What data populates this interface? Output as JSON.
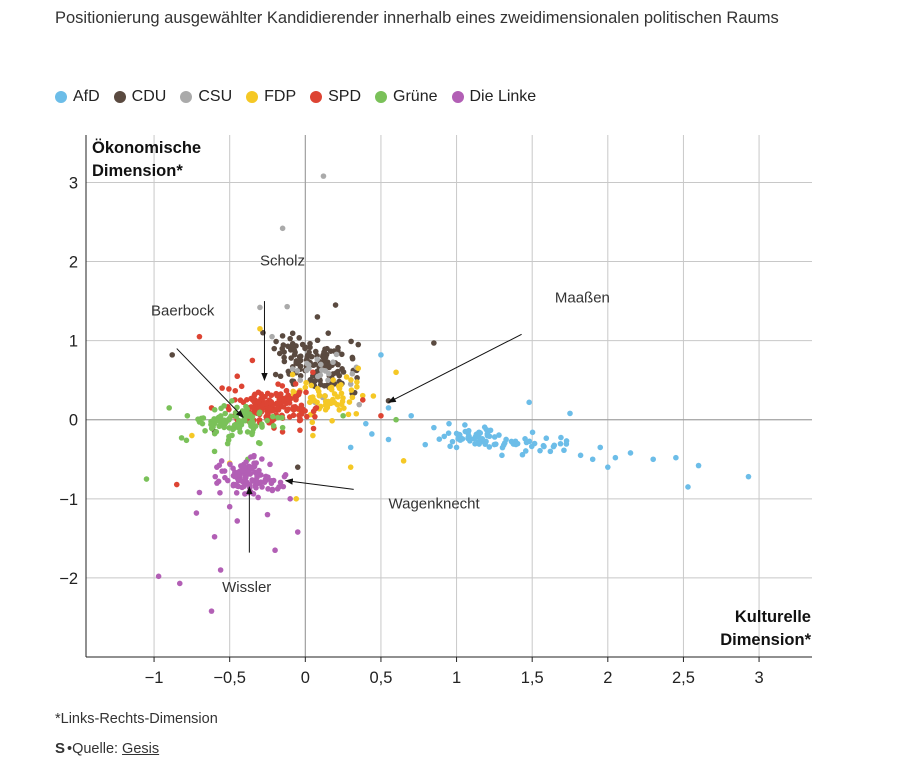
{
  "title": "Positionierung ausgewählter Kandidierender innerhalb eines zweidimensionalen politischen Raums",
  "footnote": "*Links-Rechts-Dimension",
  "source_label": "Quelle:",
  "source_link": "Gesis",
  "logo": "S",
  "chart_data": {
    "type": "scatter",
    "title": "Positionierung ausgewählter Kandidierender innerhalb eines zweidimensionalen politischen Raums",
    "xlabel_lines": [
      "Kulturelle",
      "Dimension*"
    ],
    "ylabel_lines": [
      "Ökonomische",
      "Dimension*"
    ],
    "xlim": [
      -1.45,
      3.35
    ],
    "ylim": [
      -3.0,
      3.6
    ],
    "xticks": [
      -1,
      -0.5,
      0,
      0.5,
      1,
      1.5,
      2,
      2.5,
      3
    ],
    "xtick_labels": [
      "−1",
      "−0,5",
      "0",
      "0,5",
      "1",
      "1,5",
      "2",
      "2,5",
      "3"
    ],
    "yticks": [
      -2,
      -1,
      0,
      1,
      2,
      3
    ],
    "ytick_labels": [
      "−2",
      "−1",
      "0",
      "1",
      "2",
      "3"
    ],
    "grid": true,
    "legend_position": "top-left",
    "series": [
      {
        "name": "AfD",
        "color": "#6cbde8",
        "clusters": [
          {
            "cx": 1.1,
            "cy": -0.22,
            "sx": 0.1,
            "sy": 0.06,
            "n": 55
          },
          {
            "cx": 1.5,
            "cy": -0.32,
            "sx": 0.12,
            "sy": 0.06,
            "n": 30
          }
        ],
        "points": [
          [
            2.93,
            -0.72
          ],
          [
            2.53,
            -0.85
          ],
          [
            2.6,
            -0.58
          ],
          [
            2.45,
            -0.48
          ],
          [
            2.3,
            -0.5
          ],
          [
            2.15,
            -0.42
          ],
          [
            2.05,
            -0.48
          ],
          [
            1.95,
            -0.35
          ],
          [
            1.9,
            -0.5
          ],
          [
            1.82,
            -0.45
          ],
          [
            1.75,
            0.08
          ],
          [
            1.48,
            0.22
          ],
          [
            0.5,
            0.82
          ],
          [
            0.55,
            0.15
          ],
          [
            0.7,
            0.05
          ],
          [
            0.4,
            -0.05
          ],
          [
            0.3,
            -0.35
          ],
          [
            0.55,
            -0.25
          ],
          [
            0.85,
            -0.1
          ],
          [
            0.95,
            -0.05
          ],
          [
            2.0,
            -0.6
          ],
          [
            1.62,
            -0.4
          ],
          [
            0.44,
            -0.18
          ],
          [
            1.3,
            -0.45
          ],
          [
            1.0,
            -0.35
          ]
        ]
      },
      {
        "name": "CDU",
        "color": "#5a4a40",
        "clusters": [
          {
            "cx": 0.0,
            "cy": 0.78,
            "sx": 0.14,
            "sy": 0.14,
            "n": 90
          },
          {
            "cx": 0.15,
            "cy": 0.55,
            "sx": 0.12,
            "sy": 0.12,
            "n": 40
          }
        ],
        "points": [
          [
            0.85,
            0.97
          ],
          [
            -0.88,
            0.82
          ],
          [
            0.55,
            0.24
          ],
          [
            -0.28,
            1.1
          ],
          [
            0.2,
            1.45
          ],
          [
            -0.6,
            -0.15
          ],
          [
            -0.05,
            -0.6
          ],
          [
            0.13,
            0.3
          ],
          [
            0.35,
            0.95
          ],
          [
            0.08,
            1.3
          ]
        ]
      },
      {
        "name": "CSU",
        "color": "#aaaaaa",
        "clusters": [
          {
            "cx": 0.1,
            "cy": 0.55,
            "sx": 0.15,
            "sy": 0.15,
            "n": 22
          }
        ],
        "points": [
          [
            0.12,
            3.08
          ],
          [
            -0.15,
            2.42
          ],
          [
            -0.3,
            1.42
          ],
          [
            -0.12,
            1.43
          ],
          [
            -0.22,
            1.05
          ],
          [
            0.15,
            0.5
          ],
          [
            0.3,
            0.45
          ]
        ]
      },
      {
        "name": "FDP",
        "color": "#f5c825",
        "clusters": [
          {
            "cx": 0.12,
            "cy": 0.28,
            "sx": 0.13,
            "sy": 0.13,
            "n": 70
          }
        ],
        "points": [
          [
            -0.5,
            -0.55
          ],
          [
            -0.75,
            -0.2
          ],
          [
            0.6,
            0.6
          ],
          [
            0.65,
            -0.52
          ],
          [
            0.3,
            -0.6
          ],
          [
            -0.06,
            -1.0
          ],
          [
            -0.3,
            1.15
          ],
          [
            0.35,
            0.65
          ],
          [
            0.45,
            0.3
          ],
          [
            0.05,
            -0.2
          ]
        ]
      },
      {
        "name": "SPD",
        "color": "#dd4433",
        "clusters": [
          {
            "cx": -0.22,
            "cy": 0.16,
            "sx": 0.12,
            "sy": 0.12,
            "n": 150
          }
        ],
        "points": [
          [
            -0.7,
            1.05
          ],
          [
            -0.85,
            -0.82
          ],
          [
            0.38,
            0.25
          ],
          [
            0.5,
            0.05
          ],
          [
            -0.55,
            0.4
          ],
          [
            -0.45,
            0.55
          ],
          [
            -0.62,
            0.15
          ],
          [
            0.05,
            0.6
          ],
          [
            -0.35,
            0.75
          ],
          [
            -0.18,
            0.45
          ]
        ]
      },
      {
        "name": "Grüne",
        "color": "#7ac159",
        "clusters": [
          {
            "cx": -0.48,
            "cy": -0.04,
            "sx": 0.12,
            "sy": 0.1,
            "n": 95
          }
        ],
        "points": [
          [
            -1.05,
            -0.75
          ],
          [
            -0.9,
            0.15
          ],
          [
            -0.68,
            -0.05
          ],
          [
            -0.78,
            0.05
          ],
          [
            -0.3,
            -0.3
          ],
          [
            -0.15,
            -0.1
          ],
          [
            0.6,
            0.0
          ],
          [
            0.25,
            0.05
          ],
          [
            -0.6,
            -0.4
          ],
          [
            -0.38,
            -0.5
          ]
        ]
      },
      {
        "name": "Die Linke",
        "color": "#b25fb5",
        "clusters": [
          {
            "cx": -0.35,
            "cy": -0.72,
            "sx": 0.1,
            "sy": 0.12,
            "n": 110
          }
        ],
        "points": [
          [
            -0.97,
            -1.98
          ],
          [
            -0.83,
            -2.07
          ],
          [
            -0.62,
            -2.42
          ],
          [
            -0.56,
            -1.9
          ],
          [
            -0.6,
            -1.48
          ],
          [
            -0.45,
            -1.28
          ],
          [
            -0.2,
            -1.65
          ],
          [
            -0.05,
            -1.42
          ],
          [
            -0.7,
            -0.92
          ],
          [
            -0.72,
            -1.18
          ],
          [
            -0.5,
            -1.1
          ],
          [
            -0.1,
            -1.0
          ],
          [
            -0.25,
            -1.2
          ],
          [
            -0.55,
            -0.65
          ]
        ]
      }
    ],
    "annotations": [
      {
        "label": "Scholz",
        "x": -0.3,
        "y": 1.95,
        "tx": -0.27,
        "ty": 1.5,
        "hx": -0.27,
        "hy": 0.5
      },
      {
        "label": "Baerbock",
        "x": -1.02,
        "y": 1.32,
        "tx": -0.85,
        "ty": 0.9,
        "hx": -0.41,
        "hy": 0.03
      },
      {
        "label": "Maaßen",
        "x": 1.65,
        "y": 1.48,
        "tx": 1.43,
        "ty": 1.08,
        "hx": 0.55,
        "hy": 0.22
      },
      {
        "label": "Wagenknecht",
        "x": 0.55,
        "y": -1.12,
        "tx": 0.32,
        "ty": -0.88,
        "hx": -0.13,
        "hy": -0.77
      },
      {
        "label": "Wissler",
        "x": -0.55,
        "y": -2.18,
        "tx": -0.37,
        "ty": -1.68,
        "hx": -0.37,
        "hy": -0.85
      }
    ]
  }
}
